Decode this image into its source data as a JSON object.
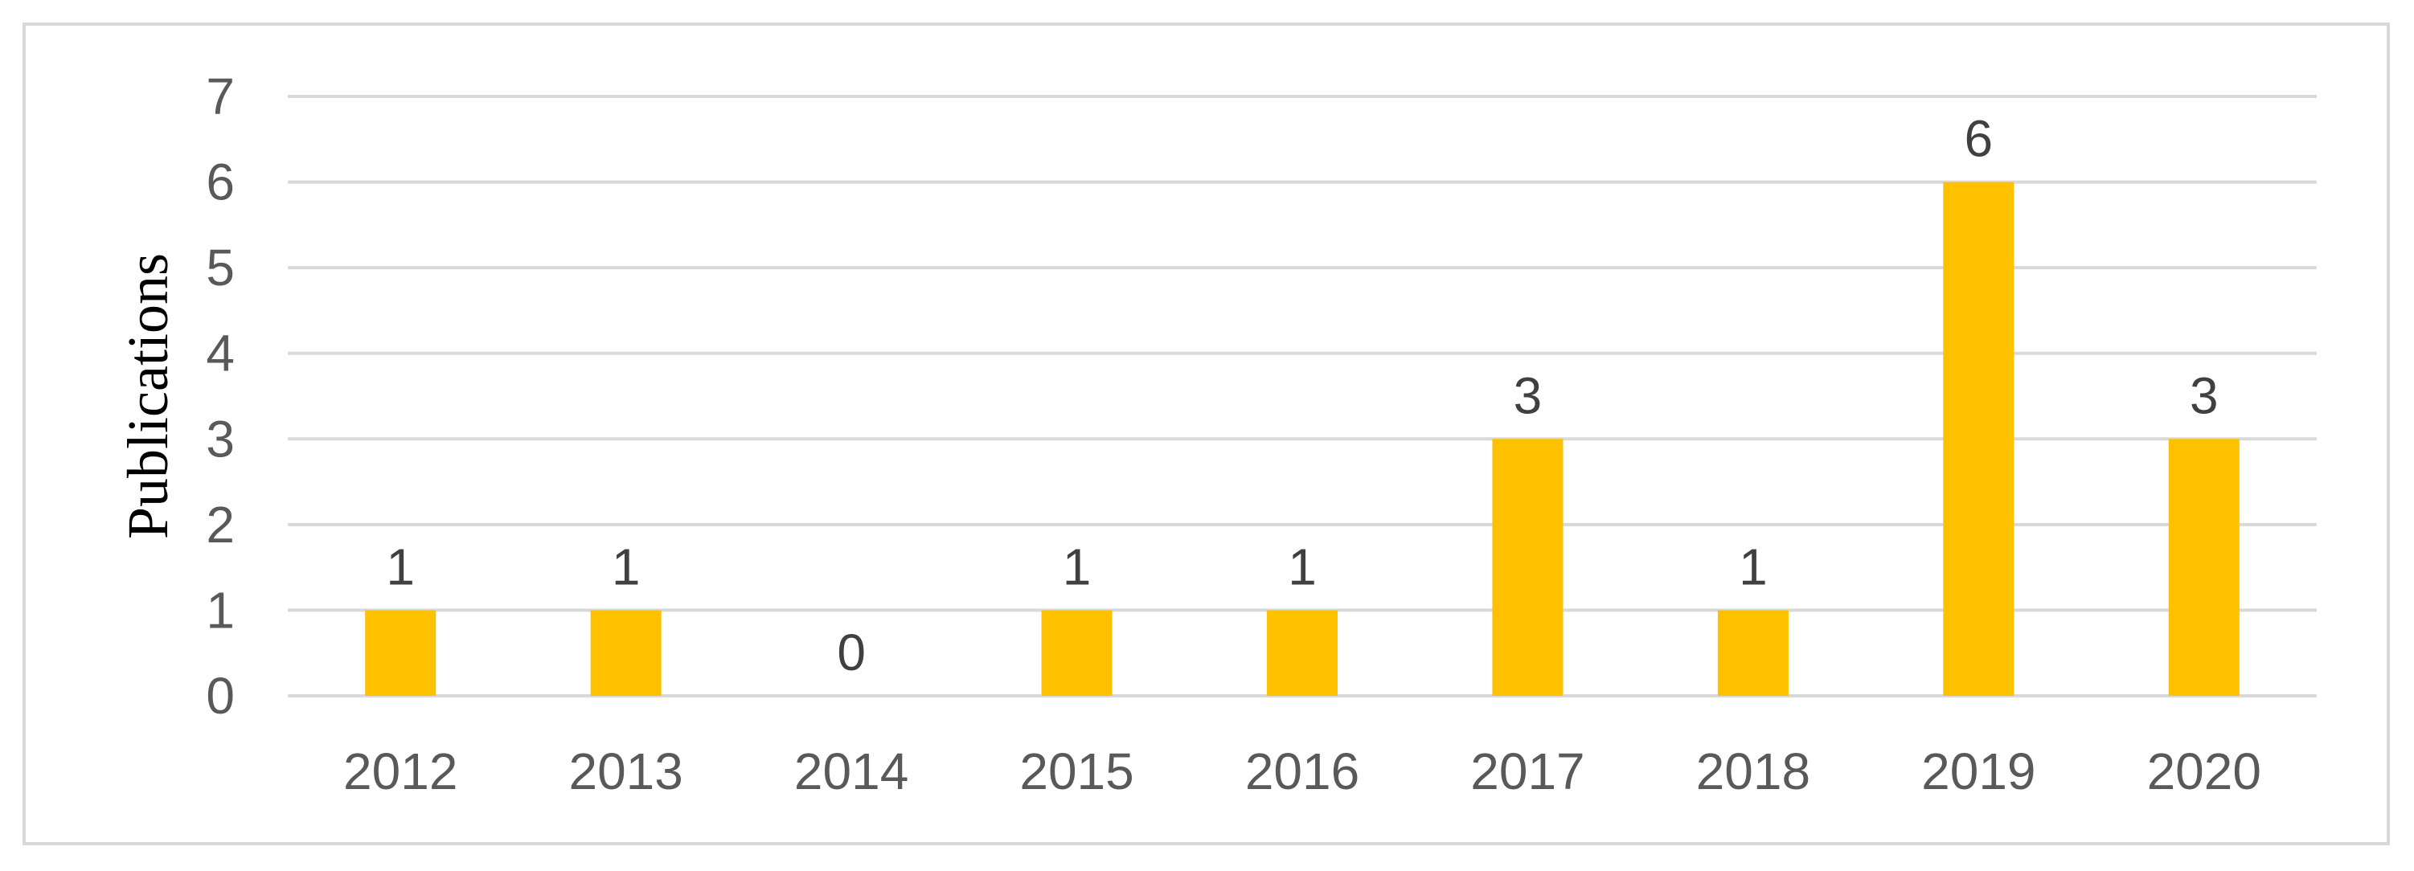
{
  "chart_data": {
    "type": "bar",
    "categories": [
      "2012",
      "2013",
      "2014",
      "2015",
      "2016",
      "2017",
      "2018",
      "2019",
      "2020"
    ],
    "values": [
      1,
      1,
      0,
      1,
      1,
      3,
      1,
      6,
      3
    ],
    "data_labels": [
      "1",
      "1",
      "0",
      "1",
      "1",
      "3",
      "1",
      "6",
      "3"
    ],
    "title": "",
    "xlabel": "",
    "ylabel": "Publications",
    "ylim": [
      0,
      7
    ],
    "yticks": [
      "0",
      "1",
      "2",
      "3",
      "4",
      "5",
      "6",
      "7"
    ],
    "grid": "horizontal",
    "legend": "none",
    "colors": {
      "bar": "#ffc000",
      "grid": "#d9d9d9",
      "frame": "#d9d9d9"
    }
  }
}
